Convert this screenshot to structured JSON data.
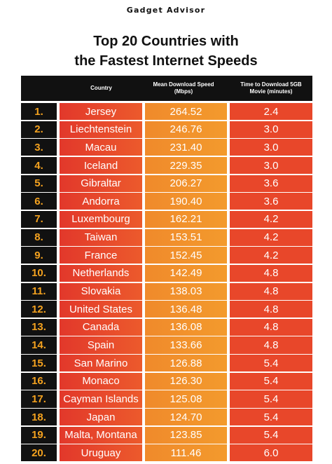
{
  "header": {
    "brand": "Gadget Advisor",
    "title": [
      "Top 20 Countries with",
      "the Fastest Internet Speeds"
    ]
  },
  "table": {
    "columns": [
      "Country",
      "Mean Download Speed (Mbps)",
      "Time to Download 5GB Movie (minutes)"
    ],
    "rows": [
      [
        "1.",
        "Jersey",
        "264.52",
        "2.4"
      ],
      [
        "2.",
        "Liechtenstein",
        "246.76",
        "3.0"
      ],
      [
        "3.",
        "Macau",
        "231.40",
        "3.0"
      ],
      [
        "4.",
        "Iceland",
        "229.35",
        "3.0"
      ],
      [
        "5.",
        "Gibraltar",
        "206.27",
        "3.6"
      ],
      [
        "6.",
        "Andorra",
        "190.40",
        "3.6"
      ],
      [
        "7.",
        "Luxembourg",
        "162.21",
        "4.2"
      ],
      [
        "8.",
        "Taiwan",
        "153.51",
        "4.2"
      ],
      [
        "9.",
        "France",
        "152.45",
        "4.2"
      ],
      [
        "10.",
        "Netherlands",
        "142.49",
        "4.8"
      ],
      [
        "11.",
        "Slovakia",
        "138.03",
        "4.8"
      ],
      [
        "12.",
        "United States",
        "136.48",
        "4.8"
      ],
      [
        "13.",
        "Canada",
        "136.08",
        "4.8"
      ],
      [
        "14.",
        "Spain",
        "133.66",
        "4.8"
      ],
      [
        "15.",
        "San Marino",
        "126.88",
        "5.4"
      ],
      [
        "16.",
        "Monaco",
        "126.30",
        "5.4"
      ],
      [
        "17.",
        "Cayman Islands",
        "125.08",
        "5.4"
      ],
      [
        "18.",
        "Japan",
        "124.70",
        "5.4"
      ],
      [
        "19.",
        "Malta, Montana",
        "123.85",
        "5.4"
      ],
      [
        "20.",
        "Uruguay",
        "111.46",
        "6.0"
      ]
    ]
  }
}
